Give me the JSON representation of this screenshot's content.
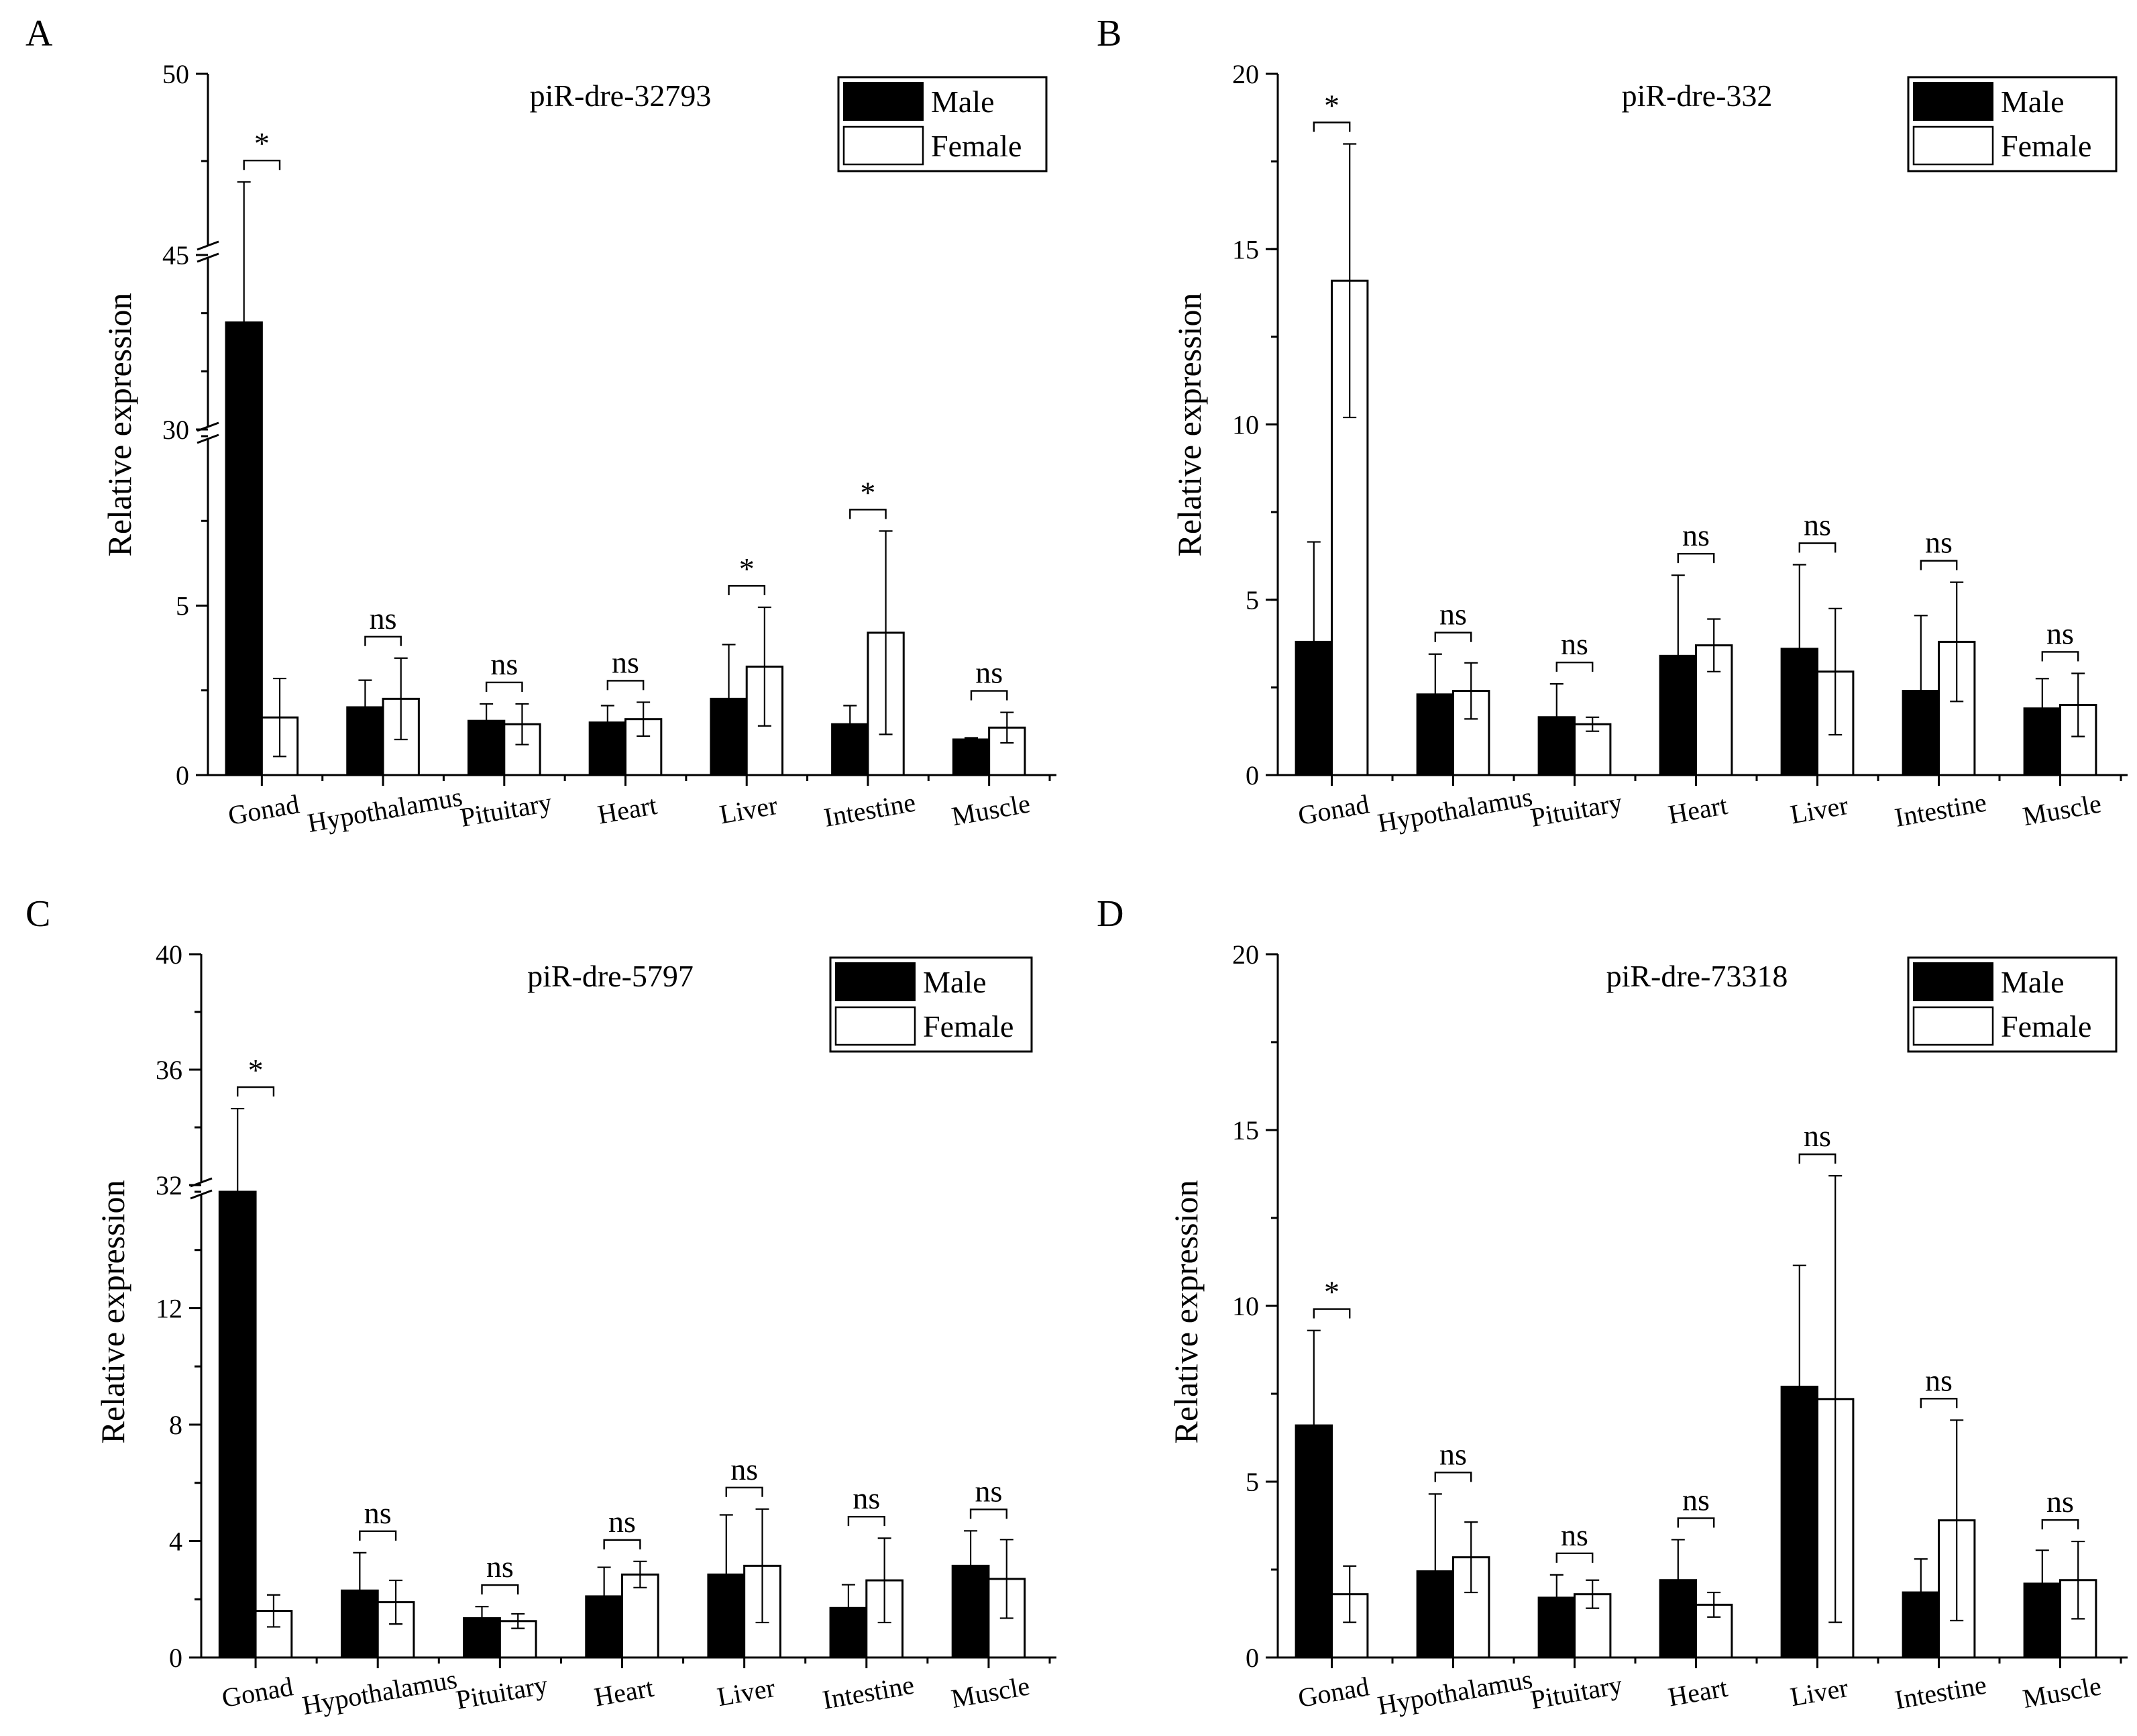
{
  "figure": {
    "panels": [
      "A",
      "B",
      "C",
      "D"
    ],
    "legend": {
      "male": "Male",
      "female": "Female"
    },
    "ylabel": "Relative expression"
  },
  "chart_data": [
    {
      "panel": "A",
      "type": "bar",
      "title": "piR-dre-32793",
      "ylabel": "Relative expression",
      "categories": [
        "Gonad",
        "Hypothalamus",
        "Pituitary",
        "Heart",
        "Liver",
        "Intestine",
        "Muscle"
      ],
      "series": [
        {
          "name": "Male",
          "values": [
            39.2,
            2.0,
            1.6,
            1.55,
            2.25,
            1.5,
            1.05
          ],
          "errors": [
            7.7,
            0.8,
            0.5,
            0.5,
            1.6,
            0.55,
            0.05
          ]
        },
        {
          "name": "Female",
          "values": [
            1.7,
            2.25,
            1.5,
            1.65,
            3.2,
            4.2,
            1.4
          ],
          "errors": [
            1.15,
            1.2,
            0.6,
            0.5,
            1.75,
            3.0,
            0.45
          ]
        }
      ],
      "significance": [
        "*",
        "ns",
        "ns",
        "ns",
        "*",
        "*",
        "ns"
      ],
      "broken_axis": {
        "segments": [
          {
            "range": [
              0,
              10
            ],
            "ticks": [
              0,
              5
            ]
          },
          {
            "range": [
              30,
              45
            ],
            "ticks": [
              30
            ]
          },
          {
            "range": [
              45,
              50
            ],
            "ticks": [
              45,
              50
            ]
          }
        ]
      },
      "ytick_labels": [
        "0",
        "5",
        "30",
        "45",
        "50"
      ]
    },
    {
      "panel": "B",
      "type": "bar",
      "title": "piR-dre-332",
      "ylabel": "Relative expression",
      "categories": [
        "Gonad",
        "Hypothalamus",
        "Pituitary",
        "Heart",
        "Liver",
        "Intestine",
        "Muscle"
      ],
      "series": [
        {
          "name": "Male",
          "values": [
            3.8,
            2.3,
            1.65,
            3.4,
            3.6,
            2.4,
            1.9
          ],
          "errors": [
            2.85,
            1.15,
            0.95,
            2.3,
            2.4,
            2.15,
            0.85
          ]
        },
        {
          "name": "Female",
          "values": [
            14.1,
            2.4,
            1.45,
            3.7,
            2.95,
            3.8,
            2.0
          ],
          "errors": [
            3.9,
            0.8,
            0.2,
            0.75,
            1.8,
            1.7,
            0.9
          ]
        }
      ],
      "significance": [
        "*",
        "ns",
        "ns",
        "ns",
        "ns",
        "ns",
        "ns"
      ],
      "ylim": [
        0,
        20
      ],
      "ytick_labels": [
        "0",
        "5",
        "10",
        "15",
        "20"
      ]
    },
    {
      "panel": "C",
      "type": "bar",
      "title": "piR-dre-5797",
      "ylabel": "Relative expression",
      "categories": [
        "Gonad",
        "Hypothalamus",
        "Pituitary",
        "Heart",
        "Liver",
        "Intestine",
        "Muscle"
      ],
      "series": [
        {
          "name": "Male",
          "values": [
            31.6,
            2.3,
            1.35,
            2.1,
            2.85,
            1.7,
            3.15
          ],
          "errors": [
            3.05,
            1.3,
            0.4,
            1.0,
            2.05,
            0.8,
            1.2
          ]
        },
        {
          "name": "Female",
          "values": [
            1.6,
            1.9,
            1.25,
            2.85,
            3.15,
            2.65,
            2.7
          ],
          "errors": [
            0.55,
            0.75,
            0.25,
            0.45,
            1.95,
            1.45,
            1.35
          ]
        }
      ],
      "significance": [
        "*",
        "ns",
        "ns",
        "ns",
        "ns",
        "ns",
        "ns"
      ],
      "broken_axis": {
        "segments": [
          {
            "range": [
              0,
              16
            ],
            "ticks": [
              0,
              4,
              8,
              12
            ]
          },
          {
            "range": [
              32,
              40
            ],
            "ticks": [
              32,
              36,
              40
            ]
          }
        ]
      },
      "ytick_labels": [
        "0",
        "4",
        "8",
        "12",
        "32",
        "36",
        "40"
      ]
    },
    {
      "panel": "D",
      "type": "bar",
      "title": "piR-dre-73318",
      "ylabel": "Relative expression",
      "categories": [
        "Gonad",
        "Hypothalamus",
        "Pituitary",
        "Heart",
        "Liver",
        "Intestine",
        "Muscle"
      ],
      "series": [
        {
          "name": "Male",
          "values": [
            6.6,
            2.45,
            1.7,
            2.2,
            7.7,
            1.85,
            2.1
          ],
          "errors": [
            2.7,
            2.2,
            0.65,
            1.15,
            3.45,
            0.95,
            0.95
          ]
        },
        {
          "name": "Female",
          "values": [
            1.8,
            2.85,
            1.8,
            1.5,
            7.35,
            3.9,
            2.2
          ],
          "errors": [
            0.8,
            1.0,
            0.4,
            0.35,
            6.35,
            2.85,
            1.1
          ]
        }
      ],
      "significance": [
        "*",
        "ns",
        "ns",
        "ns",
        "ns",
        "ns",
        "ns"
      ],
      "ylim": [
        0,
        20
      ],
      "ytick_labels": [
        "0",
        "5",
        "10",
        "15",
        "20"
      ]
    }
  ]
}
